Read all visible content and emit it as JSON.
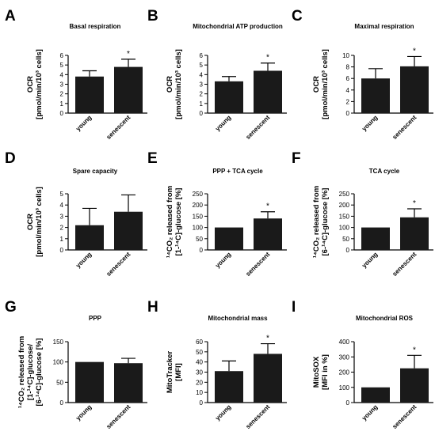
{
  "chart_data": [
    {
      "panel_label": "A",
      "type": "bar",
      "title": "Basal respiration",
      "ylabel_lines": [
        "OCR",
        "[pmol/min/10³ cells]"
      ],
      "categories": [
        "young",
        "senescent"
      ],
      "values": [
        3.8,
        4.8
      ],
      "errors": [
        0.6,
        0.8
      ],
      "significance": [
        "",
        "*"
      ],
      "ylim": [
        0,
        6
      ],
      "yticks": [
        "0",
        "1",
        "2",
        "3",
        "4",
        "5",
        "6"
      ]
    },
    {
      "panel_label": "B",
      "type": "bar",
      "title": "Mitochondrial ATP production",
      "ylabel_lines": [
        "OCR",
        "[pmol/min/10³ cells]"
      ],
      "categories": [
        "young",
        "senescent"
      ],
      "values": [
        3.3,
        4.4
      ],
      "errors": [
        0.5,
        0.8
      ],
      "significance": [
        "",
        "*"
      ],
      "ylim": [
        0,
        6
      ],
      "yticks": [
        "0",
        "1",
        "2",
        "3",
        "4",
        "5",
        "6"
      ]
    },
    {
      "panel_label": "C",
      "type": "bar",
      "title": "Maximal respiration",
      "ylabel_lines": [
        "OCR",
        "[pmol/min/10³ cells]"
      ],
      "categories": [
        "young",
        "senescent"
      ],
      "values": [
        6.0,
        8.1
      ],
      "errors": [
        1.7,
        1.7
      ],
      "significance": [
        "",
        "*"
      ],
      "ylim": [
        0,
        10
      ],
      "yticks": [
        "0",
        "2",
        "4",
        "6",
        "8",
        "10"
      ]
    },
    {
      "panel_label": "D",
      "type": "bar",
      "title": "Spare capacity",
      "ylabel_lines": [
        "OCR",
        "[pmol/min/10³ cells]"
      ],
      "categories": [
        "young",
        "senescent"
      ],
      "values": [
        2.2,
        3.4
      ],
      "errors": [
        1.5,
        1.5
      ],
      "significance": [
        "",
        ""
      ],
      "ylim": [
        0,
        5
      ],
      "yticks": [
        "0",
        "1",
        "2",
        "3",
        "4",
        "5"
      ]
    },
    {
      "panel_label": "E",
      "type": "bar",
      "title": "PPP + TCA cycle",
      "ylabel_lines": [
        "¹⁴CO₂ released from",
        "[1-¹⁴C]-glucose [%]"
      ],
      "categories": [
        "young",
        "senescent"
      ],
      "values": [
        100,
        140
      ],
      "errors": [
        0,
        30
      ],
      "significance": [
        "",
        "*"
      ],
      "ylim": [
        0,
        250
      ],
      "yticks": [
        "0",
        "50",
        "100",
        "150",
        "200",
        "250"
      ]
    },
    {
      "panel_label": "F",
      "type": "bar",
      "title": "TCA cycle",
      "ylabel_lines": [
        "¹⁴CO₂ released from",
        "[6-¹⁴C]-glucose [%]"
      ],
      "categories": [
        "young",
        "senescent"
      ],
      "values": [
        100,
        145
      ],
      "errors": [
        0,
        38
      ],
      "significance": [
        "",
        "*"
      ],
      "ylim": [
        0,
        250
      ],
      "yticks": [
        "0",
        "50",
        "100",
        "150",
        "200",
        "250"
      ]
    },
    {
      "panel_label": "G",
      "type": "bar",
      "title": "PPP",
      "ylabel_lines": [
        "¹⁴CO₂ released from",
        "[1-¹⁴C]-glucose/",
        "[6-¹⁴C]-glucose [%]"
      ],
      "categories": [
        "young",
        "senescent"
      ],
      "values": [
        100,
        97
      ],
      "errors": [
        0,
        12
      ],
      "significance": [
        "",
        ""
      ],
      "ylim": [
        0,
        150
      ],
      "yticks": [
        "0",
        "50",
        "100",
        "150"
      ]
    },
    {
      "panel_label": "H",
      "type": "bar",
      "title": "Mitochondrial mass",
      "ylabel_lines": [
        "MitoTracker",
        "[MFI]"
      ],
      "categories": [
        "young",
        "senescent"
      ],
      "values": [
        31,
        48
      ],
      "errors": [
        10,
        10
      ],
      "significance": [
        "",
        "*"
      ],
      "ylim": [
        0,
        60
      ],
      "yticks": [
        "0",
        "10",
        "20",
        "30",
        "40",
        "50",
        "60"
      ]
    },
    {
      "panel_label": "I",
      "type": "bar",
      "title": "Mitochondrial ROS",
      "ylabel_lines": [
        "MitoSOX",
        "[MFI in %]"
      ],
      "categories": [
        "young",
        "senescent"
      ],
      "values": [
        100,
        225
      ],
      "errors": [
        0,
        85
      ],
      "significance": [
        "",
        "*"
      ],
      "ylim": [
        0,
        400
      ],
      "yticks": [
        "0",
        "100",
        "200",
        "300",
        "400"
      ]
    }
  ]
}
